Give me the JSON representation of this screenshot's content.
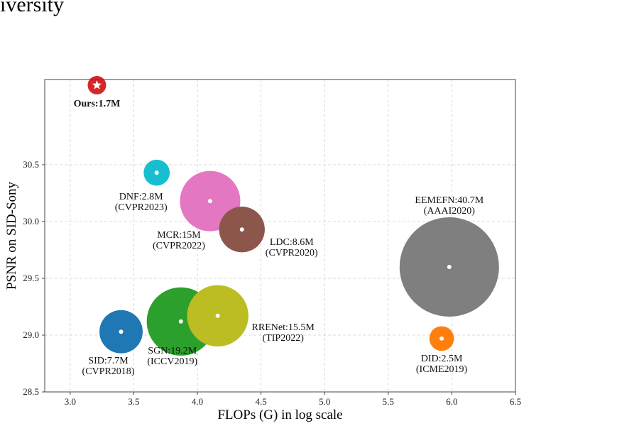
{
  "page": {
    "header_fragment": "iversity"
  },
  "chart_data": {
    "type": "scatter",
    "title": "",
    "xlabel": "FLOPs (G) in log scale",
    "ylabel": "PSNR on SID-Sony",
    "xlim": [
      2.8,
      6.5
    ],
    "ylim": [
      28.5,
      31.25
    ],
    "grid": true,
    "x_ticks": [
      3.0,
      3.5,
      4.0,
      4.5,
      5.0,
      5.5,
      6.0,
      6.5
    ],
    "y_ticks": [
      28.5,
      29.0,
      29.5,
      30.0,
      30.5
    ],
    "x_tick_labels": [
      "3.0",
      "3.5",
      "4.0",
      "4.5",
      "5.0",
      "5.5",
      "6.0",
      "6.5"
    ],
    "y_tick_labels": [
      "28.5",
      "29.0",
      "29.5",
      "30.0",
      "30.5"
    ],
    "points": [
      {
        "label": "Ours:1.7M",
        "venue": "",
        "x": 3.21,
        "y": 31.2,
        "params_m": 1.7,
        "color": "#d62728",
        "marker": "star",
        "bold": true
      },
      {
        "label": "DNF:2.8M",
        "venue": "(CVPR2023)",
        "x": 3.68,
        "y": 30.43,
        "params_m": 2.8,
        "color": "#17becf",
        "marker": "circle",
        "bold": false
      },
      {
        "label": "MCR:15M",
        "venue": "(CVPR2022)",
        "x": 4.1,
        "y": 30.18,
        "params_m": 15.0,
        "color": "#e377c2",
        "marker": "circle",
        "bold": false
      },
      {
        "label": "LDC:8.6M",
        "venue": "(CVPR2020)",
        "x": 4.35,
        "y": 29.93,
        "params_m": 8.6,
        "color": "#8c564b",
        "marker": "circle",
        "bold": false
      },
      {
        "label": "EEMEFN:40.7M",
        "venue": "(AAAI2020)",
        "x": 5.98,
        "y": 29.6,
        "params_m": 40.7,
        "color": "#7f7f7f",
        "marker": "circle",
        "bold": false
      },
      {
        "label": "SID:7.7M",
        "venue": "(CVPR2018)",
        "x": 3.4,
        "y": 29.03,
        "params_m": 7.7,
        "color": "#1f77b4",
        "marker": "circle",
        "bold": false
      },
      {
        "label": "SGN:19.2M",
        "venue": "(ICCV2019)",
        "x": 3.87,
        "y": 29.12,
        "params_m": 19.2,
        "color": "#2ca02c",
        "marker": "circle",
        "bold": false
      },
      {
        "label": "RRENet:15.5M",
        "venue": "(TIP2022)",
        "x": 4.16,
        "y": 29.17,
        "params_m": 15.5,
        "color": "#bcbd22",
        "marker": "circle",
        "bold": false
      },
      {
        "label": "DID:2.5M",
        "venue": "(ICME2019)",
        "x": 5.92,
        "y": 28.97,
        "params_m": 2.5,
        "color": "#ff7f0e",
        "marker": "circle",
        "bold": false
      }
    ]
  }
}
